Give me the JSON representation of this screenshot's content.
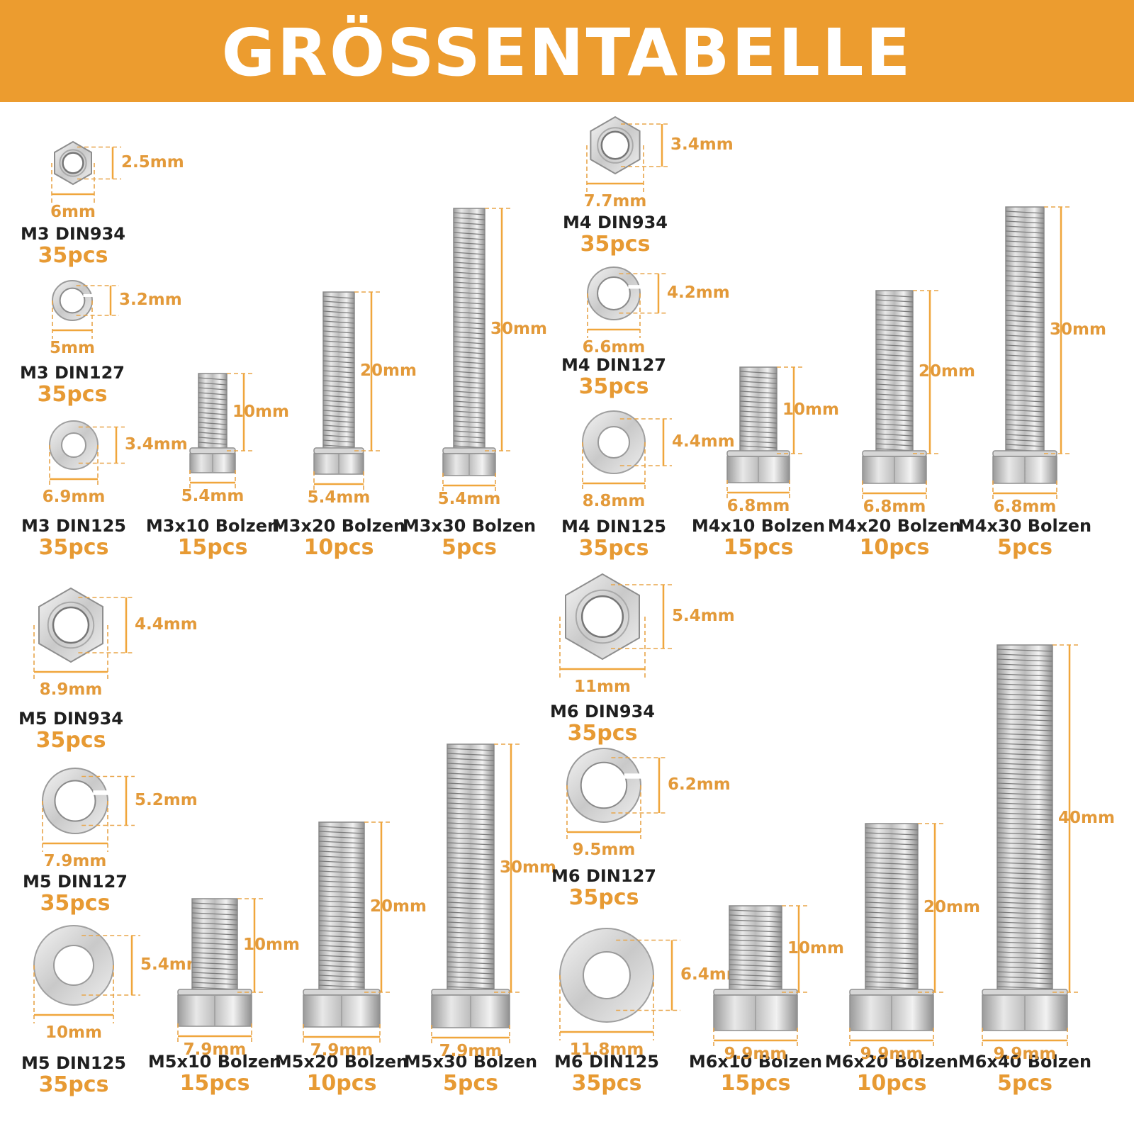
{
  "title": "GRÖSSENTABELLE",
  "colors": {
    "banner": "#ec9c2f",
    "quantity": "#e79a33",
    "dimension": "#e39a3a",
    "name": "#1f1f1f"
  },
  "items": [
    {
      "kind": "nut",
      "name": "M3 DIN934",
      "qty": "35pcs",
      "height": "2.5mm",
      "width": "6mm"
    },
    {
      "kind": "spring_washer",
      "name": "M3 DIN127",
      "qty": "35pcs",
      "height": "3.2mm",
      "width": "5mm"
    },
    {
      "kind": "washer",
      "name": "M3 DIN125",
      "qty": "35pcs",
      "height": "3.4mm",
      "width": "6.9mm"
    },
    {
      "kind": "bolt",
      "name": "M3x10 Bolzen",
      "qty": "15pcs",
      "length": "10mm",
      "width": "5.4mm"
    },
    {
      "kind": "bolt",
      "name": "M3x20 Bolzen",
      "qty": "10pcs",
      "length": "20mm",
      "width": "5.4mm"
    },
    {
      "kind": "bolt",
      "name": "M3x30 Bolzen",
      "qty": "5pcs",
      "length": "30mm",
      "width": "5.4mm"
    },
    {
      "kind": "nut",
      "name": "M4 DIN934",
      "qty": "35pcs",
      "height": "3.4mm",
      "width": "7.7mm"
    },
    {
      "kind": "spring_washer",
      "name": "M4 DIN127",
      "qty": "35pcs",
      "height": "4.2mm",
      "width": "6.6mm"
    },
    {
      "kind": "washer",
      "name": "M4 DIN125",
      "qty": "35pcs",
      "height": "4.4mm",
      "width": "8.8mm"
    },
    {
      "kind": "bolt",
      "name": "M4x10 Bolzen",
      "qty": "15pcs",
      "length": "10mm",
      "width": "6.8mm"
    },
    {
      "kind": "bolt",
      "name": "M4x20 Bolzen",
      "qty": "10pcs",
      "length": "20mm",
      "width": "6.8mm"
    },
    {
      "kind": "bolt",
      "name": "M4x30 Bolzen",
      "qty": "5pcs",
      "length": "30mm",
      "width": "6.8mm"
    },
    {
      "kind": "nut",
      "name": "M5 DIN934",
      "qty": "35pcs",
      "height": "4.4mm",
      "width": "8.9mm"
    },
    {
      "kind": "spring_washer",
      "name": "M5 DIN127",
      "qty": "35pcs",
      "height": "5.2mm",
      "width": "7.9mm"
    },
    {
      "kind": "washer",
      "name": "M5 DIN125",
      "qty": "35pcs",
      "height": "5.4mm",
      "width": "10mm"
    },
    {
      "kind": "bolt",
      "name": "M5x10 Bolzen",
      "qty": "15pcs",
      "length": "10mm",
      "width": "7.9mm"
    },
    {
      "kind": "bolt",
      "name": "M5x20 Bolzen",
      "qty": "10pcs",
      "length": "20mm",
      "width": "7.9mm"
    },
    {
      "kind": "bolt",
      "name": "M5x30 Bolzen",
      "qty": "5pcs",
      "length": "30mm",
      "width": "7.9mm"
    },
    {
      "kind": "nut",
      "name": "M6 DIN934",
      "qty": "35pcs",
      "height": "5.4mm",
      "width": "11mm"
    },
    {
      "kind": "spring_washer",
      "name": "M6 DIN127",
      "qty": "35pcs",
      "height": "6.2mm",
      "width": "9.5mm"
    },
    {
      "kind": "washer",
      "name": "M6 DIN125",
      "qty": "35pcs",
      "height": "6.4mm",
      "width": "11.8mm"
    },
    {
      "kind": "bolt",
      "name": "M6x10 Bolzen",
      "qty": "15pcs",
      "length": "10mm",
      "width": "9.9mm"
    },
    {
      "kind": "bolt",
      "name": "M6x20 Bolzen",
      "qty": "10pcs",
      "length": "20mm",
      "width": "9.9mm"
    },
    {
      "kind": "bolt",
      "name": "M6x40 Bolzen",
      "qty": "5pcs",
      "length": "40mm",
      "width": "9.9mm"
    }
  ]
}
